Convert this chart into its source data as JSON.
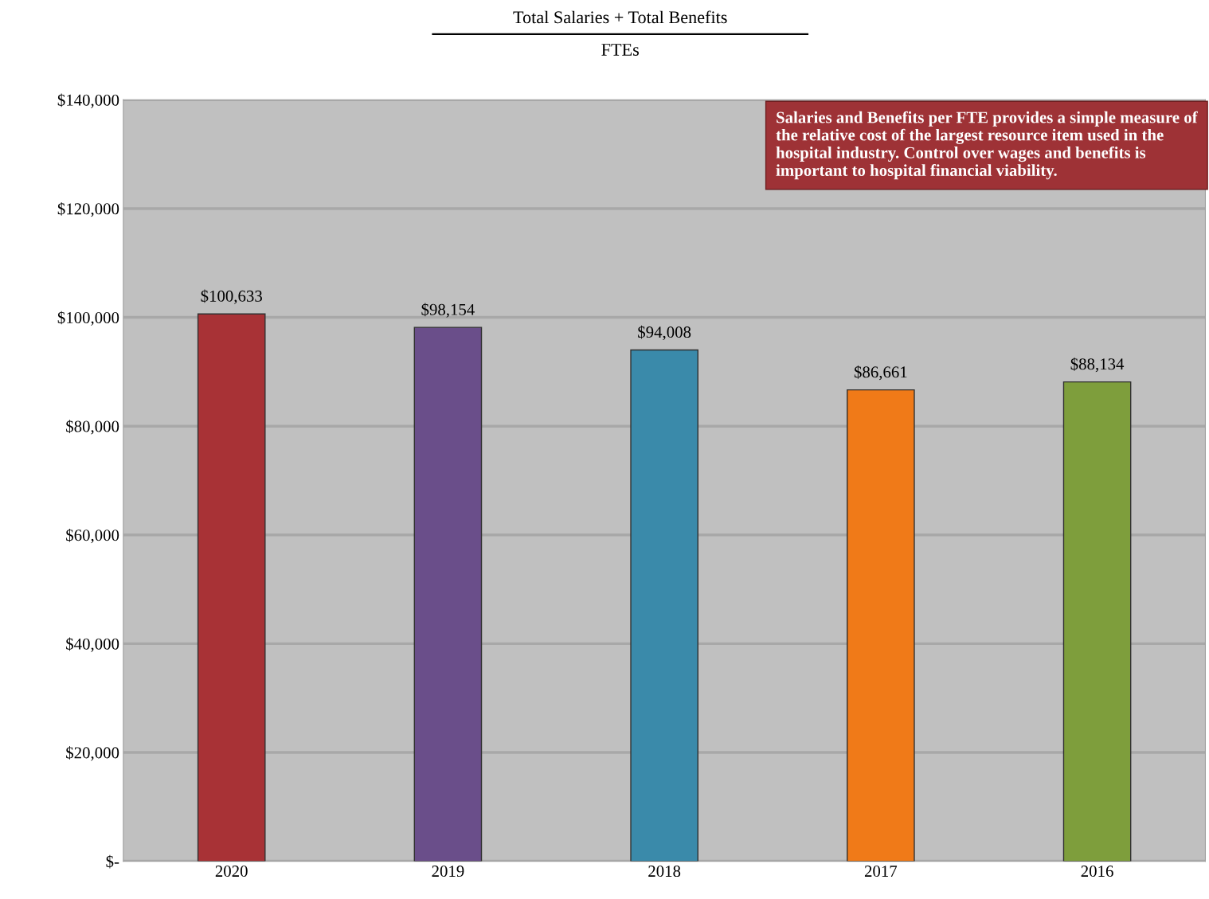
{
  "chart_data": {
    "type": "bar",
    "title": "Total Salaries + Total Benefits",
    "subtitle": "FTEs",
    "categories": [
      "2020",
      "2019",
      "2018",
      "2017",
      "2016"
    ],
    "values": [
      100633,
      98154,
      94008,
      86661,
      88134
    ],
    "colors": [
      "#a83236",
      "#6a4e8a",
      "#3a8aaa",
      "#f07a18",
      "#7e9e3c"
    ],
    "value_labels": [
      "$100,633",
      "$98,154",
      "$94,008",
      "$86,661",
      "$88,134"
    ],
    "ylim": [
      0,
      140000
    ],
    "yticks": [
      {
        "value": 0,
        "label": "$-"
      },
      {
        "value": 20000,
        "label": "$20,000"
      },
      {
        "value": 40000,
        "label": "$40,000"
      },
      {
        "value": 60000,
        "label": "$60,000"
      },
      {
        "value": 80000,
        "label": "$80,000"
      },
      {
        "value": 100000,
        "label": "$100,000"
      },
      {
        "value": 120000,
        "label": "$120,000"
      },
      {
        "value": 140000,
        "label": "$140,000"
      }
    ],
    "grid": "y",
    "annotations": [
      "Salaries and Benefits per FTE provides a simple measure of the relative cost of the largest resource item used in the hospital industry. Control over wages and benefits is important to hospital financial viability."
    ]
  }
}
